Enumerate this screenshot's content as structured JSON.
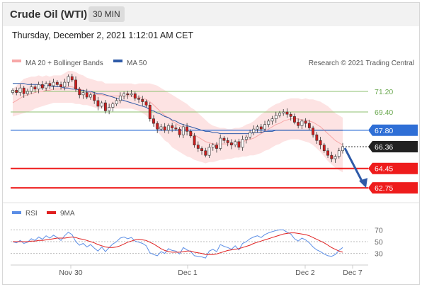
{
  "header": {
    "title": "Crude Oil (WTI)",
    "timeframe": "30 MIN"
  },
  "timestamp": "Thursday, December 2, 2021 1:12:01 AM CET",
  "credit": "Research © 2021 Trading Central",
  "colors": {
    "bollinger": "#f7a8a8",
    "bollinger_band": "#fde3e3",
    "ma50": "#2e5aa8",
    "resistance": "#8dc26f",
    "pivot": "#2f6fd6",
    "support": "#ee1c1c",
    "rsi": "#5b8ee6",
    "rsi_ma": "#e02020",
    "candle_up": "#ffffff",
    "candle_down": "#d01c1c"
  },
  "chart_data": [
    {
      "type": "line",
      "name": "price",
      "legend": [
        "MA 20 + Bollinger Bands",
        "MA 50"
      ],
      "x_ticks": [
        "Nov 30",
        "Dec 1",
        "Dec 2",
        "Dec 7"
      ],
      "ylim": [
        61.7,
        73.0
      ],
      "levels": [
        {
          "label": "71.20",
          "value": 71.2,
          "kind": "resistance"
        },
        {
          "label": "69.40",
          "value": 69.4,
          "kind": "resistance"
        },
        {
          "label": "67.80",
          "value": 67.8,
          "kind": "pivot"
        },
        {
          "label": "66.36",
          "value": 66.36,
          "kind": "last"
        },
        {
          "label": "64.45",
          "value": 64.45,
          "kind": "support"
        },
        {
          "label": "62.75",
          "value": 62.75,
          "kind": "support"
        }
      ],
      "close": [
        71.3,
        71.1,
        71.5,
        71.0,
        71.2,
        71.6,
        71.4,
        71.8,
        71.5,
        71.9,
        71.7,
        72.0,
        71.8,
        71.6,
        72.0,
        72.5,
        72.2,
        71.4,
        70.9,
        71.1,
        70.7,
        70.9,
        70.4,
        69.9,
        70.2,
        69.5,
        69.8,
        70.1,
        70.4,
        70.8,
        71.0,
        70.9,
        71.0,
        70.6,
        70.5,
        70.3,
        70.0,
        68.8,
        68.4,
        67.9,
        68.1,
        67.8,
        68.2,
        68.0,
        67.9,
        67.4,
        68.1,
        67.7,
        67.3,
        66.5,
        66.2,
        66.0,
        65.6,
        66.3,
        66.5,
        66.2,
        67.1,
        66.9,
        66.7,
        66.5,
        66.8,
        66.3,
        67.0,
        67.2,
        67.6,
        67.9,
        68.1,
        67.9,
        68.3,
        68.6,
        68.8,
        69.1,
        69.3,
        69.4,
        69.2,
        69.0,
        68.5,
        68.2,
        68.6,
        68.4,
        68.0,
        67.4,
        66.9,
        66.5,
        66.0,
        65.6,
        65.3,
        65.5,
        66.0,
        66.36
      ],
      "ma20": [
        70.2,
        70.4,
        70.6,
        70.8,
        70.9,
        71.0,
        71.1,
        71.2,
        71.2,
        71.3,
        71.3,
        71.4,
        71.4,
        71.4,
        71.5,
        71.6,
        71.6,
        71.5,
        71.4,
        71.3,
        71.2,
        71.1,
        71.0,
        70.9,
        70.9,
        70.8,
        70.8,
        70.8,
        70.8,
        70.8,
        70.8,
        70.8,
        70.8,
        70.7,
        70.7,
        70.6,
        70.5,
        70.3,
        70.0,
        69.7,
        69.4,
        69.1,
        68.9,
        68.6,
        68.4,
        68.2,
        68.0,
        67.8,
        67.6,
        67.4,
        67.2,
        67.0,
        66.8,
        66.7,
        66.6,
        66.6,
        66.6,
        66.6,
        66.6,
        66.6,
        66.7,
        66.7,
        66.8,
        66.9,
        67.0,
        67.1,
        67.3,
        67.5,
        67.7,
        67.9,
        68.1,
        68.3,
        68.4,
        68.6,
        68.7,
        68.8,
        68.8,
        68.8,
        68.7,
        68.7,
        68.6,
        68.5,
        68.3,
        68.1,
        67.8,
        67.5,
        67.2,
        66.9,
        66.7,
        66.5
      ],
      "ma50": [
        71.9,
        71.9,
        71.9,
        71.9,
        71.8,
        71.8,
        71.8,
        71.8,
        71.7,
        71.7,
        71.7,
        71.6,
        71.6,
        71.6,
        71.5,
        71.5,
        71.4,
        71.4,
        71.3,
        71.3,
        71.2,
        71.2,
        71.1,
        71.0,
        71.0,
        70.9,
        70.8,
        70.7,
        70.6,
        70.5,
        70.4,
        70.3,
        70.2,
        70.1,
        70.0,
        69.9,
        69.8,
        69.6,
        69.5,
        69.3,
        69.2,
        69.0,
        68.9,
        68.7,
        68.6,
        68.4,
        68.3,
        68.2,
        68.1,
        68.0,
        67.9,
        67.8,
        67.7,
        67.7,
        67.6,
        67.6,
        67.5,
        67.5,
        67.5,
        67.5,
        67.5,
        67.5,
        67.5,
        67.5,
        67.5,
        67.6,
        67.6,
        67.6,
        67.7,
        67.7,
        67.7,
        67.8,
        67.8,
        67.8,
        67.8,
        67.8,
        67.8,
        67.8,
        67.8,
        67.8,
        67.8,
        67.8,
        67.8,
        67.8,
        67.8,
        67.8,
        67.8,
        67.8,
        67.8,
        67.8
      ],
      "bb_width": [
        1.2,
        1.3,
        1.4,
        1.5,
        1.5,
        1.5,
        1.4,
        1.4,
        1.3,
        1.3,
        1.2,
        1.2,
        1.2,
        1.2,
        1.3,
        1.4,
        1.4,
        1.4,
        1.3,
        1.3,
        1.2,
        1.2,
        1.2,
        1.2,
        1.2,
        1.1,
        1.1,
        1.1,
        1.1,
        1.1,
        1.1,
        1.1,
        1.1,
        1.1,
        1.2,
        1.3,
        1.4,
        1.6,
        1.8,
        2.0,
        2.1,
        2.2,
        2.2,
        2.3,
        2.3,
        2.3,
        2.3,
        2.3,
        2.2,
        2.2,
        2.1,
        2.0,
        1.9,
        1.7,
        1.6,
        1.5,
        1.4,
        1.4,
        1.3,
        1.3,
        1.3,
        1.3,
        1.3,
        1.4,
        1.4,
        1.5,
        1.6,
        1.7,
        1.7,
        1.8,
        1.8,
        1.8,
        1.8,
        1.8,
        1.8,
        1.8,
        1.8,
        1.8,
        1.8,
        1.9,
        1.9,
        2.0,
        2.1,
        2.2,
        2.3,
        2.4,
        2.4,
        2.4,
        2.4,
        2.4
      ],
      "forecast_target": 62.75
    },
    {
      "type": "line",
      "name": "rsi",
      "legend": [
        "RSI",
        "9MA"
      ],
      "y_ticks": [
        70,
        50,
        30
      ],
      "ylim": [
        15,
        85
      ],
      "rsi": [
        50,
        48,
        52,
        47,
        49,
        55,
        52,
        58,
        54,
        60,
        56,
        61,
        57,
        52,
        60,
        66,
        62,
        50,
        44,
        47,
        41,
        45,
        39,
        34,
        41,
        33,
        40,
        46,
        50,
        56,
        58,
        55,
        57,
        51,
        49,
        47,
        43,
        31,
        28,
        26,
        33,
        30,
        38,
        35,
        34,
        29,
        40,
        36,
        33,
        26,
        25,
        24,
        22,
        34,
        37,
        33,
        45,
        42,
        40,
        37,
        43,
        36,
        47,
        50,
        55,
        58,
        60,
        57,
        62,
        65,
        67,
        69,
        70,
        70,
        66,
        63,
        55,
        51,
        56,
        53,
        48,
        41,
        36,
        33,
        29,
        26,
        25,
        28,
        35,
        40
      ],
      "ma9": [
        50,
        50,
        50,
        50,
        50,
        51,
        51,
        52,
        52,
        53,
        54,
        55,
        56,
        56,
        56,
        57,
        58,
        57,
        55,
        54,
        52,
        50,
        48,
        45,
        43,
        41,
        40,
        40,
        41,
        43,
        46,
        49,
        51,
        53,
        54,
        53,
        52,
        49,
        46,
        42,
        38,
        35,
        33,
        32,
        32,
        32,
        33,
        34,
        34,
        32,
        31,
        30,
        28,
        28,
        28,
        29,
        31,
        33,
        35,
        36,
        37,
        38,
        40,
        42,
        44,
        47,
        49,
        51,
        53,
        55,
        57,
        59,
        61,
        63,
        64,
        65,
        65,
        64,
        63,
        62,
        60,
        57,
        54,
        51,
        48,
        44,
        40,
        37,
        34,
        32
      ]
    }
  ]
}
